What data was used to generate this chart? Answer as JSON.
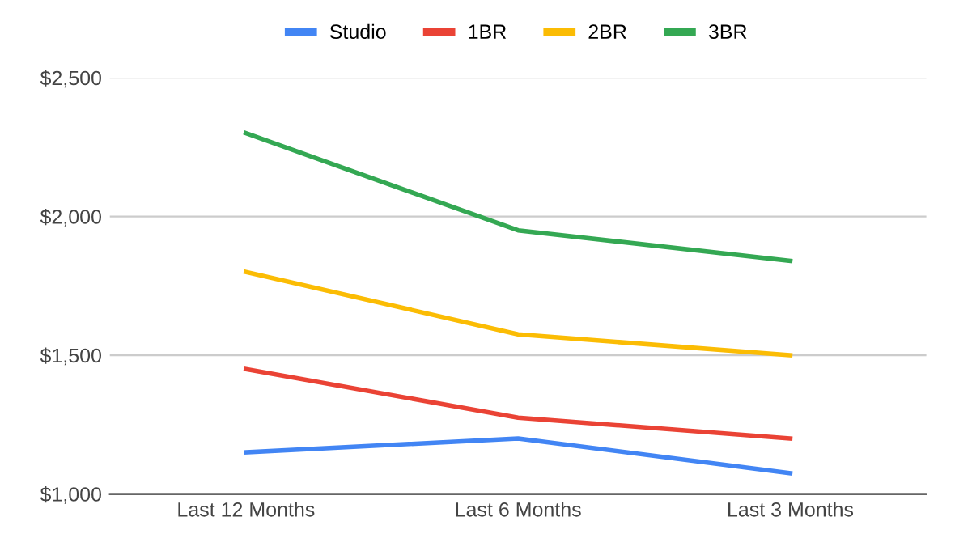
{
  "chart_data": {
    "type": "line",
    "categories": [
      "Last 12 Months",
      "Last 6 Months",
      "Last 3 Months"
    ],
    "series": [
      {
        "name": "Studio",
        "color": "#4285f4",
        "values": [
          1150,
          1200,
          1075
        ]
      },
      {
        "name": "1BR",
        "color": "#ea4335",
        "values": [
          1450,
          1275,
          1200
        ]
      },
      {
        "name": "2BR",
        "color": "#fbbc04",
        "values": [
          1800,
          1575,
          1500
        ]
      },
      {
        "name": "3BR",
        "color": "#34a853",
        "values": [
          2300,
          1950,
          1840
        ]
      }
    ],
    "ylim": [
      1000,
      2500
    ],
    "yticks": [
      {
        "value": 1000,
        "label": "$1,000"
      },
      {
        "value": 1500,
        "label": "$1,500"
      },
      {
        "value": 2000,
        "label": "$2,000"
      },
      {
        "value": 2500,
        "label": "$2,500"
      }
    ],
    "grid": "y",
    "legend": "top",
    "marker": "none",
    "line_style": "solid"
  }
}
